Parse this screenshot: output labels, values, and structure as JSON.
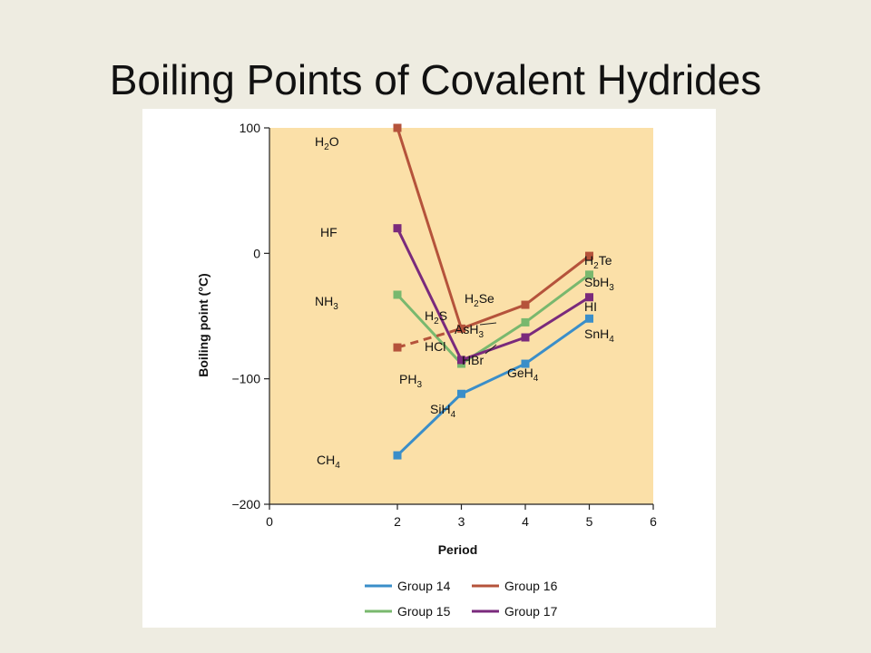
{
  "slide": {
    "title": "Boiling Points of Covalent Hydrides"
  },
  "colors": {
    "plot_bg": "#fbe0a8",
    "group14": "#3a8ec9",
    "group15": "#79b86e",
    "group16": "#b5533b",
    "group17": "#7a2a7c"
  },
  "chart_data": {
    "type": "line",
    "xlabel": "Period",
    "ylabel": "Boiling point (°C)",
    "xlim": [
      0,
      6
    ],
    "ylim": [
      -200,
      100
    ],
    "xticks": [
      0,
      2,
      3,
      4,
      5,
      6
    ],
    "xtick_labels": [
      "0",
      "2",
      "3",
      "4",
      "5",
      "6"
    ],
    "yticks": [
      100,
      0,
      -100,
      -200
    ],
    "ytick_labels": [
      "100",
      "0",
      "−100",
      "−200"
    ],
    "grid": false,
    "legend_position": "bottom",
    "series": [
      {
        "name": "Group 14",
        "color": "#3a8ec9",
        "x": [
          2,
          3,
          4,
          5
        ],
        "y": [
          -161,
          -112,
          -88,
          -52
        ],
        "points": [
          "CH4",
          "SiH4",
          "GeH4",
          "SnH4"
        ]
      },
      {
        "name": "Group 15",
        "color": "#79b86e",
        "x": [
          2,
          3,
          4,
          5
        ],
        "y": [
          -33,
          -88,
          -55,
          -17
        ],
        "points": [
          "NH3",
          "PH3",
          "AsH3",
          "SbH3"
        ]
      },
      {
        "name": "Group 16",
        "color": "#b5533b",
        "x": [
          2,
          3,
          4,
          5
        ],
        "y": [
          100,
          -60,
          -41,
          -2
        ],
        "points": [
          "H2O",
          "H2S",
          "H2Se",
          "H2Te"
        ],
        "extrapolated": {
          "x": 2,
          "y": -75
        }
      },
      {
        "name": "Group 17",
        "color": "#7a2a7c",
        "x": [
          2,
          3,
          4,
          5
        ],
        "y": [
          20,
          -85,
          -67,
          -35
        ],
        "points": [
          "HF",
          "HCl",
          "HBr",
          "HI"
        ]
      }
    ],
    "labels": [
      {
        "id": "H2O",
        "main": "H",
        "sub": "2",
        "tail": "O"
      },
      {
        "id": "HF",
        "main": "HF",
        "sub": "",
        "tail": ""
      },
      {
        "id": "NH3",
        "main": "NH",
        "sub": "3",
        "tail": ""
      },
      {
        "id": "CH4",
        "main": "CH",
        "sub": "4",
        "tail": ""
      },
      {
        "id": "H2S",
        "main": "H",
        "sub": "2",
        "tail": "S"
      },
      {
        "id": "HCl",
        "main": "HCl",
        "sub": "",
        "tail": ""
      },
      {
        "id": "PH3",
        "main": "PH",
        "sub": "3",
        "tail": ""
      },
      {
        "id": "SiH4",
        "main": "SiH",
        "sub": "4",
        "tail": ""
      },
      {
        "id": "H2Se",
        "main": "H",
        "sub": "2",
        "tail": "Se"
      },
      {
        "id": "AsH3",
        "main": "AsH",
        "sub": "3",
        "tail": ""
      },
      {
        "id": "HBr",
        "main": "HBr",
        "sub": "",
        "tail": ""
      },
      {
        "id": "GeH4",
        "main": "GeH",
        "sub": "4",
        "tail": ""
      },
      {
        "id": "H2Te",
        "main": "H",
        "sub": "2",
        "tail": "Te"
      },
      {
        "id": "SbH3",
        "main": "SbH",
        "sub": "3",
        "tail": ""
      },
      {
        "id": "HI",
        "main": "HI",
        "sub": "",
        "tail": ""
      },
      {
        "id": "SnH4",
        "main": "SnH",
        "sub": "4",
        "tail": ""
      }
    ]
  }
}
